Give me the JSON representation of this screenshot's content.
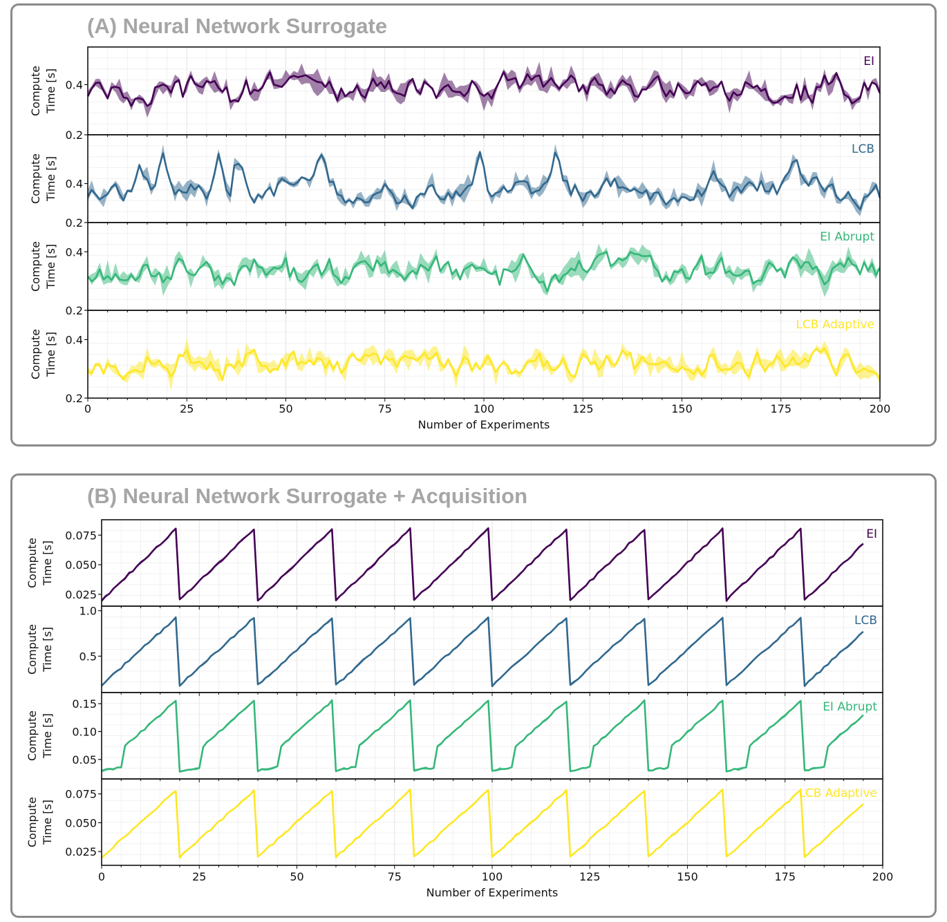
{
  "panels": [
    {
      "title": "(A) Neural Network Surrogate",
      "xlabel": "Number of Experiments",
      "xticks": [
        0,
        25,
        50,
        75,
        100,
        125,
        150,
        175,
        200
      ],
      "ylabel": "Compute\nTime [s]"
    },
    {
      "title": "(B) Neural Network Surrogate + Acquisition",
      "xlabel": "Number of Experiments",
      "xticks": [
        0,
        25,
        50,
        75,
        100,
        125,
        150,
        175,
        200
      ],
      "ylabel": "Compute\nTime [s]"
    }
  ],
  "colors": {
    "EI": "#440154",
    "LCB": "#31688e",
    "EI Abrupt": "#35b779",
    "LCB Adaptive": "#fde725"
  },
  "chart_data": [
    {
      "type": "line",
      "title": "(A) Neural Network Surrogate",
      "xlabel": "Number of Experiments",
      "ylabel": "Compute Time [s]",
      "xlim": [
        0,
        200
      ],
      "subplots": [
        {
          "name": "EI",
          "ylim": [
            0.2,
            0.55
          ],
          "yticks": [
            0.2,
            0.4
          ],
          "pattern": "noise",
          "base": 0.38,
          "amp": 0.045,
          "seed": 11
        },
        {
          "name": "LCB",
          "ylim": [
            0.2,
            0.65
          ],
          "yticks": [
            0.2,
            0.4
          ],
          "pattern": "noise-peaks",
          "base": 0.36,
          "amp": 0.05,
          "peaks": [
            13,
            19,
            33,
            38,
            59,
            99,
            118,
            158,
            178
          ],
          "seed": 23
        },
        {
          "name": "EI Abrupt",
          "ylim": [
            0.2,
            0.5
          ],
          "yticks": [
            0.2,
            0.4
          ],
          "pattern": "noise",
          "base": 0.33,
          "amp": 0.04,
          "seed": 37
        },
        {
          "name": "LCB Adaptive",
          "ylim": [
            0.2,
            0.5
          ],
          "yticks": [
            0.2,
            0.4
          ],
          "pattern": "noise",
          "base": 0.32,
          "amp": 0.04,
          "seed": 53
        }
      ]
    },
    {
      "type": "line",
      "title": "(B) Neural Network Surrogate + Acquisition",
      "xlabel": "Number of Experiments",
      "ylabel": "Compute Time [s]",
      "xlim": [
        0,
        200
      ],
      "subplots": [
        {
          "name": "EI",
          "ylim": [
            0.015,
            0.088
          ],
          "yticks": [
            0.025,
            0.05,
            0.075
          ],
          "ytick_labels": [
            "0.025",
            "0.050",
            "0.075"
          ],
          "pattern": "sawtooth",
          "low": 0.02,
          "high": 0.08,
          "period": 20,
          "end": 195,
          "seed": 61
        },
        {
          "name": "LCB",
          "ylim": [
            0.1,
            1.05
          ],
          "yticks": [
            0.5,
            1.0
          ],
          "ytick_labels": [
            "0.5",
            "1.0"
          ],
          "pattern": "sawtooth",
          "low": 0.18,
          "high": 0.92,
          "period": 20,
          "end": 195,
          "seed": 71
        },
        {
          "name": "EI Abrupt",
          "ylim": [
            0.015,
            0.17
          ],
          "yticks": [
            0.05,
            0.1,
            0.15
          ],
          "ytick_labels": [
            "0.05",
            "0.10",
            "0.15"
          ],
          "pattern": "sawtooth-step",
          "low": 0.03,
          "high": 0.155,
          "period": 20,
          "end": 195,
          "seed": 83
        },
        {
          "name": "LCB Adaptive",
          "ylim": [
            0.013,
            0.088
          ],
          "yticks": [
            0.025,
            0.05,
            0.075
          ],
          "ytick_labels": [
            "0.025",
            "0.050",
            "0.075"
          ],
          "pattern": "sawtooth",
          "low": 0.02,
          "high": 0.078,
          "period": 20,
          "end": 195,
          "seed": 97
        }
      ]
    }
  ]
}
